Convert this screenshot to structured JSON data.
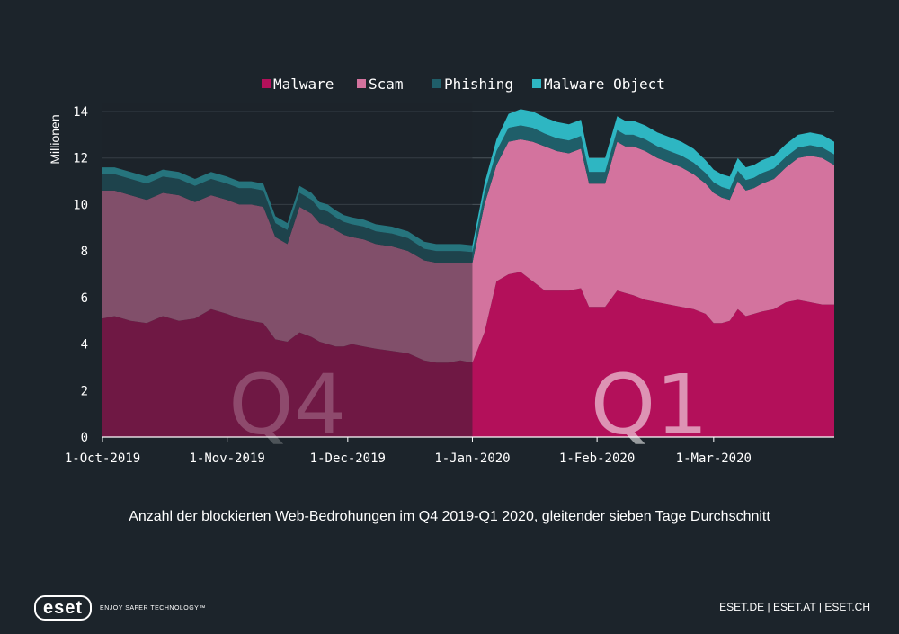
{
  "caption": "Anzahl der blockierten Web-Bedrohungen im Q4 2019-Q1 2020, gleitender sieben Tage Durchschnitt",
  "footer": {
    "logo": "eset",
    "tagline": "ENJOY SAFER TECHNOLOGY™",
    "links": "ESET.DE | ESET.AT | ESET.CH"
  },
  "colors": {
    "background": "#1c242b",
    "grid": "#4a535b",
    "malware": "#b3105a",
    "scam": "#d3739e",
    "phishing": "#1f5e69",
    "malware_object": "#2eb6c2",
    "q4_overlay": "#1c242b",
    "quarter_label": "#ffffff"
  },
  "chart_data": {
    "type": "area",
    "stacked": true,
    "title": "",
    "xlabel": "",
    "ylabel": "Millionen",
    "ylim": [
      0,
      14
    ],
    "yticks": [
      0,
      2,
      4,
      6,
      8,
      10,
      12,
      14
    ],
    "grid": "horizontal",
    "legend_position": "top",
    "x_start": "2019-10-01",
    "x_end": "2020-03-31",
    "xticks": [
      {
        "date": "2019-10-01",
        "label": "1-Oct-2019"
      },
      {
        "date": "2019-11-01",
        "label": "1-Nov-2019"
      },
      {
        "date": "2019-12-01",
        "label": "1-Dec-2019"
      },
      {
        "date": "2020-01-01",
        "label": "1-Jan-2020"
      },
      {
        "date": "2020-02-01",
        "label": "1-Feb-2020"
      },
      {
        "date": "2020-03-01",
        "label": "1-Mar-2020"
      }
    ],
    "annotations": [
      {
        "text": "Q4",
        "date": "2019-11-16"
      },
      {
        "text": "Q1",
        "date": "2020-02-14"
      }
    ],
    "highlight_split": "2020-01-01",
    "x": [
      "2019-10-01",
      "2019-10-04",
      "2019-10-08",
      "2019-10-12",
      "2019-10-16",
      "2019-10-20",
      "2019-10-24",
      "2019-10-28",
      "2019-11-01",
      "2019-11-04",
      "2019-11-07",
      "2019-11-10",
      "2019-11-13",
      "2019-11-16",
      "2019-11-19",
      "2019-11-22",
      "2019-11-24",
      "2019-11-26",
      "2019-11-28",
      "2019-11-30",
      "2019-12-02",
      "2019-12-05",
      "2019-12-08",
      "2019-12-12",
      "2019-12-16",
      "2019-12-20",
      "2019-12-23",
      "2019-12-26",
      "2019-12-29",
      "2020-01-01",
      "2020-01-04",
      "2020-01-07",
      "2020-01-10",
      "2020-01-13",
      "2020-01-16",
      "2020-01-19",
      "2020-01-22",
      "2020-01-25",
      "2020-01-28",
      "2020-01-30",
      "2020-02-01",
      "2020-02-03",
      "2020-02-06",
      "2020-02-08",
      "2020-02-10",
      "2020-02-13",
      "2020-02-16",
      "2020-02-19",
      "2020-02-22",
      "2020-02-25",
      "2020-02-28",
      "2020-03-01",
      "2020-03-03",
      "2020-03-05",
      "2020-03-07",
      "2020-03-09",
      "2020-03-11",
      "2020-03-13",
      "2020-03-16",
      "2020-03-19",
      "2020-03-22",
      "2020-03-25",
      "2020-03-28",
      "2020-03-31"
    ],
    "series": [
      {
        "name": "Malware",
        "values": [
          5.1,
          5.2,
          5.0,
          4.9,
          5.2,
          5.0,
          5.1,
          5.5,
          5.3,
          5.1,
          5.0,
          4.9,
          4.2,
          4.1,
          4.5,
          4.3,
          4.1,
          4.0,
          3.9,
          3.9,
          4.0,
          3.9,
          3.8,
          3.7,
          3.6,
          3.3,
          3.2,
          3.2,
          3.3,
          3.2,
          4.5,
          6.7,
          7.0,
          7.1,
          6.7,
          6.3,
          6.3,
          6.3,
          6.4,
          5.6,
          5.6,
          5.6,
          6.3,
          6.2,
          6.1,
          5.9,
          5.8,
          5.7,
          5.6,
          5.5,
          5.3,
          4.9,
          4.9,
          5.0,
          5.5,
          5.2,
          5.3,
          5.4,
          5.5,
          5.8,
          5.9,
          5.8,
          5.7,
          5.7
        ]
      },
      {
        "name": "Scam",
        "values": [
          5.5,
          5.4,
          5.4,
          5.3,
          5.3,
          5.4,
          5.0,
          4.9,
          4.9,
          4.9,
          5.0,
          5.0,
          4.4,
          4.2,
          5.4,
          5.3,
          5.1,
          5.1,
          5.0,
          4.8,
          4.6,
          4.6,
          4.5,
          4.5,
          4.4,
          4.3,
          4.3,
          4.3,
          4.2,
          4.3,
          5.5,
          5.0,
          5.7,
          5.7,
          6.0,
          6.2,
          6.0,
          5.9,
          6.0,
          5.3,
          5.3,
          5.3,
          6.4,
          6.3,
          6.4,
          6.4,
          6.2,
          6.1,
          6.0,
          5.8,
          5.6,
          5.6,
          5.4,
          5.2,
          5.5,
          5.4,
          5.4,
          5.5,
          5.6,
          5.8,
          6.1,
          6.3,
          6.3,
          6.0
        ]
      },
      {
        "name": "Phishing",
        "values": [
          0.7,
          0.7,
          0.7,
          0.7,
          0.7,
          0.7,
          0.7,
          0.7,
          0.7,
          0.7,
          0.7,
          0.7,
          0.6,
          0.6,
          0.6,
          0.6,
          0.6,
          0.6,
          0.55,
          0.55,
          0.55,
          0.55,
          0.55,
          0.55,
          0.55,
          0.5,
          0.5,
          0.5,
          0.5,
          0.45,
          0.5,
          0.6,
          0.6,
          0.6,
          0.6,
          0.55,
          0.55,
          0.55,
          0.55,
          0.5,
          0.5,
          0.5,
          0.5,
          0.5,
          0.5,
          0.5,
          0.5,
          0.5,
          0.5,
          0.5,
          0.45,
          0.45,
          0.45,
          0.45,
          0.45,
          0.45,
          0.45,
          0.45,
          0.45,
          0.45,
          0.45,
          0.45,
          0.45,
          0.45
        ]
      },
      {
        "name": "Malware Object",
        "values": [
          0.3,
          0.3,
          0.3,
          0.3,
          0.3,
          0.3,
          0.3,
          0.3,
          0.3,
          0.3,
          0.3,
          0.3,
          0.3,
          0.3,
          0.3,
          0.3,
          0.3,
          0.3,
          0.3,
          0.3,
          0.3,
          0.3,
          0.3,
          0.3,
          0.3,
          0.3,
          0.3,
          0.3,
          0.3,
          0.3,
          0.4,
          0.5,
          0.6,
          0.7,
          0.7,
          0.7,
          0.7,
          0.7,
          0.7,
          0.6,
          0.6,
          0.6,
          0.6,
          0.6,
          0.6,
          0.6,
          0.6,
          0.6,
          0.6,
          0.6,
          0.55,
          0.55,
          0.55,
          0.55,
          0.55,
          0.55,
          0.55,
          0.55,
          0.55,
          0.55,
          0.55,
          0.55,
          0.55,
          0.55
        ]
      }
    ]
  }
}
